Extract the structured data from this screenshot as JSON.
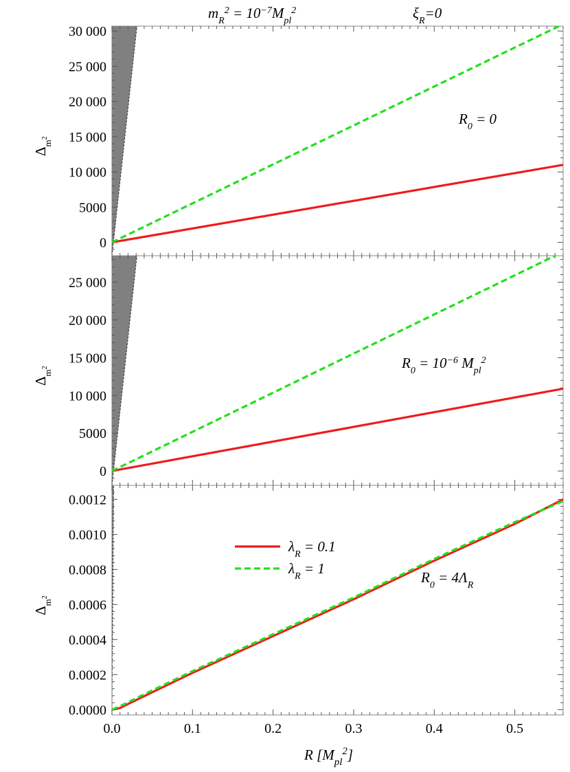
{
  "header": {
    "left_html": "m<tspan baseline-shift='sub' font-size='14'>R</tspan><tspan baseline-shift='super' font-size='14'>2</tspan> = 10<tspan baseline-shift='super' font-size='14'>−7</tspan>M<tspan baseline-shift='sub' font-size='14'>pl</tspan><tspan baseline-shift='super' font-size='14'>2</tspan>",
    "right_html": "ξ<tspan baseline-shift='sub' font-size='14'>R</tspan>=0"
  },
  "xaxis": {
    "label_html": "R  [M<tspan baseline-shift='sub' font-size='15'>pl</tspan><tspan baseline-shift='super' font-size='15'>2</tspan>]",
    "ticks": [
      0,
      0.1,
      0.2,
      0.3,
      0.4,
      0.5
    ],
    "tick_labels": [
      "0.0",
      "0.1",
      "0.2",
      "0.3",
      "0.4",
      "0.5"
    ],
    "range": [
      0,
      0.56
    ]
  },
  "legend": {
    "position": "center-left of bottom panel",
    "entries": [
      {
        "series": "lambda_0.1",
        "label_html": "λ<tspan baseline-shift='sub' font-size='14'>R</tspan> = 0.1"
      },
      {
        "series": "lambda_1",
        "label_html": "λ<tspan baseline-shift='sub' font-size='14'>R</tspan> = 1"
      }
    ]
  },
  "colors": {
    "red": "#ee1c1c",
    "green": "#22e01c",
    "shade": "#808080",
    "axis": "#888888"
  },
  "chart_data": [
    {
      "type": "line",
      "panel": "top",
      "annotation_html": "R<tspan baseline-shift='sub' font-size='14'>0</tspan> = 0",
      "ylabel_html": "Δ<tspan baseline-shift='sub' font-size='13'>m<tspan baseline-shift='super' font-size='10'>2</tspan></tspan>",
      "ylim": [
        -1900,
        30700
      ],
      "xlim": [
        0,
        0.56
      ],
      "yticks": [
        0,
        5000,
        10000,
        15000,
        20000,
        25000,
        30000
      ],
      "ytick_labels": [
        "0",
        "5000",
        "10 000",
        "15 000",
        "20 000",
        "25 000",
        "30 000"
      ],
      "shaded_region": {
        "x_at_y_min": 0.0,
        "x_at_y_max": 0.031
      },
      "series": [
        {
          "key": "lambda_0.1",
          "style": "solid",
          "x": [
            0,
            0.56
          ],
          "y": [
            0,
            11000
          ]
        },
        {
          "key": "lambda_1",
          "style": "dashed",
          "x": [
            0,
            0.555
          ],
          "y": [
            0,
            30700
          ]
        }
      ]
    },
    {
      "type": "line",
      "panel": "middle",
      "annotation_html": "R<tspan baseline-shift='sub' font-size='14'>0</tspan> =  10<tspan baseline-shift='super' font-size='14'>−6</tspan> M<tspan baseline-shift='sub' font-size='14'>pl</tspan><tspan baseline-shift='super' font-size='14'>2</tspan>",
      "ylabel_html": "Δ<tspan baseline-shift='sub' font-size='13'>m<tspan baseline-shift='super' font-size='10'>2</tspan></tspan>",
      "ylim": [
        -1900,
        28500
      ],
      "xlim": [
        0,
        0.56
      ],
      "yticks": [
        0,
        5000,
        10000,
        15000,
        20000,
        25000
      ],
      "ytick_labels": [
        "0",
        "5000",
        "10 000",
        "15 000",
        "20 000",
        "25 000"
      ],
      "shaded_region": {
        "x_at_y_min": 0.0,
        "x_at_y_max": 0.031
      },
      "series": [
        {
          "key": "lambda_0.1",
          "style": "solid",
          "x": [
            0,
            0.56
          ],
          "y": [
            0,
            10900
          ]
        },
        {
          "key": "lambda_1",
          "style": "dashed",
          "x": [
            0,
            0.55
          ],
          "y": [
            0,
            28500
          ]
        }
      ]
    },
    {
      "type": "line",
      "panel": "bottom",
      "annotation_html": "R<tspan baseline-shift='sub' font-size='14'>0</tspan> =  4Λ<tspan baseline-shift='sub' font-size='14'>R</tspan>",
      "ylabel_html": "Δ<tspan baseline-shift='sub' font-size='13'>m<tspan baseline-shift='super' font-size='10'>2</tspan></tspan>",
      "ylim": [
        -3e-05,
        0.00128
      ],
      "xlim": [
        0,
        0.56
      ],
      "yticks": [
        0,
        0.0002,
        0.0004,
        0.0006,
        0.0008,
        0.001,
        0.0012
      ],
      "ytick_labels": [
        "0.0000",
        "0.0002",
        "0.0004",
        "0.0006",
        "0.0008",
        "0.0010",
        "0.0012"
      ],
      "shaded_region": {
        "x_at_y_min": 0.0,
        "x_at_y_max": 0.002
      },
      "series": [
        {
          "key": "lambda_0.1",
          "style": "solid",
          "x": [
            0,
            0.01,
            0.05,
            0.1,
            0.2,
            0.3,
            0.4,
            0.5,
            0.56
          ],
          "y": [
            0,
            1e-05,
            0.0001,
            0.00021,
            0.00042,
            0.00063,
            0.00085,
            0.00106,
            0.0012
          ]
        },
        {
          "key": "lambda_1",
          "style": "dashed",
          "x": [
            0,
            0.01,
            0.05,
            0.1,
            0.2,
            0.3,
            0.4,
            0.5,
            0.56
          ],
          "y": [
            0,
            2e-05,
            0.00011,
            0.00022,
            0.00043,
            0.00064,
            0.00086,
            0.00107,
            0.00119
          ]
        }
      ]
    }
  ]
}
